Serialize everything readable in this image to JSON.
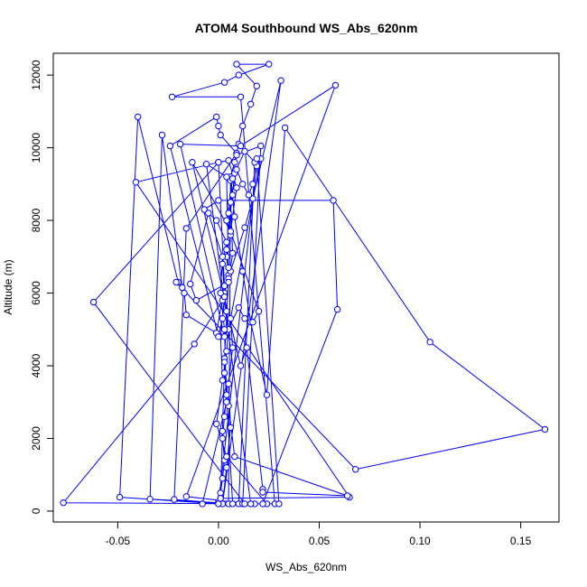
{
  "chart_data": {
    "type": "scatter",
    "title": "ATOM4 Southbound WS_Abs_620nm",
    "xlabel": "WS_Abs_620nm",
    "ylabel": "Altitude (m)",
    "xlim": [
      -0.082,
      0.169
    ],
    "ylim": [
      -300,
      12600
    ],
    "x_ticks": [
      "-0.05",
      "0.00",
      "0.05",
      "0.10",
      "0.15"
    ],
    "x_tick_values": [
      -0.05,
      0.0,
      0.05,
      0.1,
      0.15
    ],
    "y_ticks": [
      "0",
      "2000",
      "4000",
      "6000",
      "8000",
      "10000",
      "12000"
    ],
    "y_tick_values": [
      0,
      2000,
      4000,
      6000,
      8000,
      10000,
      12000
    ],
    "grid": false,
    "legend": "none",
    "connected": true,
    "marker": "open-circle",
    "color": "#0000ff",
    "series": [
      {
        "points": [
          [
            0.0,
            250
          ],
          [
            0.001,
            500
          ],
          [
            0.002,
            900
          ],
          [
            0.003,
            1400
          ],
          [
            0.002,
            2000
          ],
          [
            0.003,
            2600
          ],
          [
            0.004,
            3200
          ],
          [
            0.003,
            3800
          ],
          [
            0.004,
            4400
          ],
          [
            0.005,
            5000
          ],
          [
            0.004,
            5500
          ],
          [
            0.003,
            6000
          ],
          [
            0.005,
            6500
          ],
          [
            0.004,
            7000
          ],
          [
            0.006,
            7600
          ],
          [
            0.005,
            8200
          ],
          [
            0.007,
            8700
          ],
          [
            0.006,
            9200
          ],
          [
            0.008,
            9600
          ],
          [
            0.01,
            10100
          ],
          [
            0.012,
            10600
          ],
          [
            0.016,
            11200
          ],
          [
            0.019,
            11700
          ],
          [
            0.009,
            12300
          ],
          [
            0.025,
            12300
          ],
          [
            0.01,
            12000
          ],
          [
            0.003,
            11800
          ],
          [
            -0.023,
            11400
          ],
          [
            0.011,
            11400
          ],
          [
            0.028,
            200
          ],
          [
            0.024,
            200
          ],
          [
            0.004,
            1500
          ],
          [
            -0.001,
            2400
          ],
          [
            0.002,
            3600
          ],
          [
            0.001,
            4800
          ],
          [
            0.003,
            5900
          ],
          [
            0.002,
            6800
          ],
          [
            0.004,
            7400
          ],
          [
            -0.001,
            8000
          ],
          [
            -0.007,
            8300
          ],
          [
            0.0,
            8550
          ],
          [
            0.057,
            8550
          ],
          [
            0.059,
            5550
          ],
          [
            0.022,
            200
          ],
          [
            0.018,
            200
          ],
          [
            -0.077,
            230
          ],
          [
            -0.012,
            4600
          ],
          [
            0.002,
            5800
          ],
          [
            0.006,
            6600
          ],
          [
            0.013,
            7800
          ],
          [
            0.017,
            8600
          ],
          [
            0.031,
            11850
          ],
          [
            0.002,
            200
          ],
          [
            0.004,
            1200
          ],
          [
            0.006,
            2300
          ],
          [
            0.005,
            3500
          ],
          [
            0.007,
            4500
          ],
          [
            0.006,
            5300
          ],
          [
            0.021,
            9700
          ],
          [
            0.019,
            9500
          ],
          [
            0.0,
            200
          ],
          [
            -0.049,
            380
          ],
          [
            -0.04,
            10850
          ],
          [
            -0.02,
            6300
          ],
          [
            -0.017,
            6000
          ],
          [
            -0.016,
            5400
          ],
          [
            -0.001,
            4900
          ],
          [
            0.003,
            6200
          ],
          [
            0.0,
            9600
          ],
          [
            -0.041,
            9050
          ],
          [
            0.065,
            380
          ],
          [
            0.001,
            350
          ],
          [
            0.002,
            2200
          ],
          [
            0.003,
            4200
          ],
          [
            0.005,
            6400
          ],
          [
            0.004,
            7200
          ],
          [
            0.008,
            9300
          ],
          [
            0.013,
            9900
          ],
          [
            0.018,
            9600
          ],
          [
            0.01,
            200
          ],
          [
            -0.034,
            330
          ],
          [
            -0.028,
            10350
          ],
          [
            -0.018,
            6150
          ],
          [
            -0.021,
            6300
          ],
          [
            0.068,
            1150
          ],
          [
            0.162,
            2250
          ],
          [
            0.105,
            4650
          ],
          [
            0.033,
            10550
          ],
          [
            0.024,
            3200
          ],
          [
            0.016,
            5200
          ],
          [
            0.012,
            6600
          ],
          [
            0.008,
            8100
          ],
          [
            0.006,
            9100
          ],
          [
            0.005,
            200
          ],
          [
            -0.022,
            320
          ],
          [
            -0.016,
            7780
          ],
          [
            0.009,
            9850
          ],
          [
            0.001,
            10350
          ],
          [
            0.0,
            10600
          ],
          [
            -0.001,
            10850
          ],
          [
            -0.024,
            10050
          ],
          [
            0.0,
            4800
          ],
          [
            0.002,
            5300
          ],
          [
            0.003,
            5900
          ],
          [
            0.005,
            6700
          ],
          [
            0.004,
            9200
          ],
          [
            -0.006,
            9550
          ],
          [
            0.016,
            200
          ],
          [
            -0.016,
            400
          ],
          [
            0.058,
            11720
          ],
          [
            0.011,
            10050
          ],
          [
            -0.019,
            10100
          ],
          [
            0.003,
            4800
          ],
          [
            0.01,
            5600
          ],
          [
            0.013,
            5300
          ],
          [
            0.017,
            5200
          ],
          [
            0.02,
            5500
          ],
          [
            0.004,
            8000
          ],
          [
            0.007,
            9150
          ],
          [
            0.009,
            9800
          ],
          [
            0.021,
            10050
          ],
          [
            0.012,
            200
          ],
          [
            0.013,
            200
          ],
          [
            -0.062,
            5750
          ],
          [
            0.0,
            9600
          ],
          [
            0.005,
            9650
          ],
          [
            0.009,
            8900
          ],
          [
            0.006,
            7700
          ],
          [
            -0.013,
            9600
          ],
          [
            0.011,
            4000
          ],
          [
            0.014,
            4500
          ],
          [
            0.022,
            600
          ],
          [
            0.022,
            520
          ],
          [
            0.064,
            420
          ],
          [
            0.008,
            1500
          ],
          [
            0.005,
            2900
          ],
          [
            0.003,
            4100
          ],
          [
            0.007,
            200
          ],
          [
            -0.008,
            200
          ],
          [
            0.004,
            3000
          ],
          [
            0.003,
            5000
          ],
          [
            0.001,
            6000
          ],
          [
            0.002,
            7000
          ],
          [
            -0.005,
            8200
          ],
          [
            -0.014,
            6250
          ],
          [
            -0.011,
            5800
          ],
          [
            0.005,
            6300
          ],
          [
            0.007,
            7100
          ],
          [
            0.006,
            8500
          ],
          [
            0.009,
            9400
          ],
          [
            0.012,
            9000
          ],
          [
            0.015,
            8700
          ],
          [
            0.017,
            9000
          ],
          [
            0.019,
            9700
          ],
          [
            0.03,
            200
          ]
        ]
      }
    ]
  }
}
